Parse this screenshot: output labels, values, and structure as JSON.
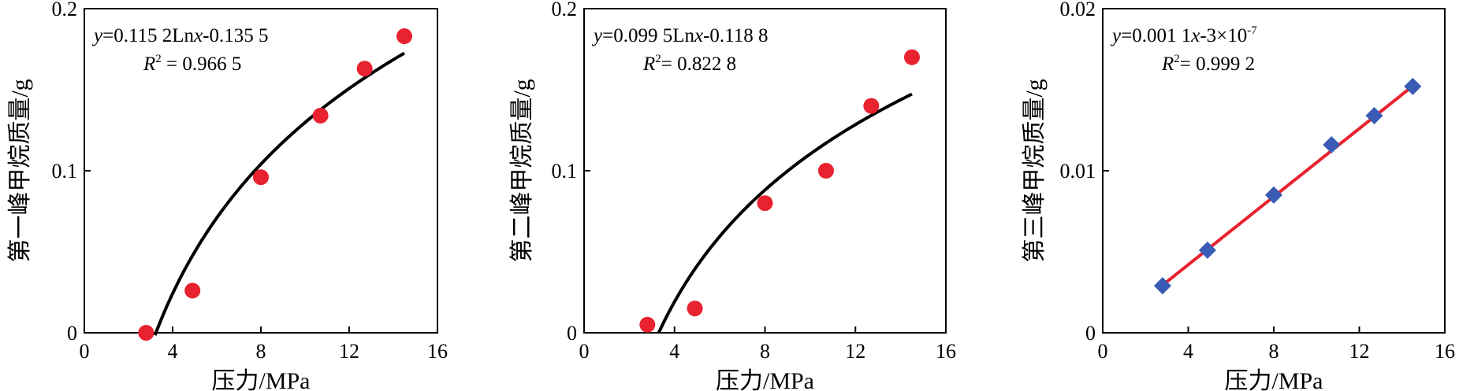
{
  "chart_data": [
    {
      "type": "scatter",
      "xlabel": "压力/MPa",
      "ylabel": "第一峰甲烷质量/g",
      "xlim": [
        0,
        16
      ],
      "ylim": [
        0,
        0.2
      ],
      "xticks": [
        "0",
        "4",
        "8",
        "12",
        "16"
      ],
      "yticks": [
        "0",
        "0.1",
        "0.2"
      ],
      "grid": false,
      "equation_parts": {
        "y": "y",
        "rest": "=0.115 2Ln",
        "x": "x",
        "tail": "-0.135 5"
      },
      "r2_parts": {
        "r": "R",
        "sup": "2",
        "value": " = 0.966 5"
      },
      "marker": "circle",
      "marker_color": "#e8222e",
      "fit_color": "#000000",
      "fit": {
        "kind": "log",
        "a": 0.1152,
        "b": -0.1355,
        "x_range": [
          3.2,
          14.5
        ]
      },
      "points": [
        {
          "x": 2.8,
          "y": 0.0
        },
        {
          "x": 4.9,
          "y": 0.026
        },
        {
          "x": 8.0,
          "y": 0.096
        },
        {
          "x": 10.7,
          "y": 0.134
        },
        {
          "x": 12.7,
          "y": 0.163
        },
        {
          "x": 14.5,
          "y": 0.183
        }
      ]
    },
    {
      "type": "scatter",
      "xlabel": "压力/MPa",
      "ylabel": "第二峰甲烷质量/g",
      "xlim": [
        0,
        16
      ],
      "ylim": [
        0,
        0.2
      ],
      "xticks": [
        "0",
        "4",
        "8",
        "12",
        "16"
      ],
      "yticks": [
        "0",
        "0.1",
        "0.2"
      ],
      "grid": false,
      "equation_parts": {
        "y": "y",
        "rest": "=0.099 5Ln",
        "x": "x",
        "tail": "-0.118 8"
      },
      "r2_parts": {
        "r": "R",
        "sup": "2",
        "value": "= 0.822 8"
      },
      "marker": "circle",
      "marker_color": "#e8222e",
      "fit_color": "#000000",
      "fit": {
        "kind": "log",
        "a": 0.0995,
        "b": -0.1188,
        "x_range": [
          3.3,
          14.5
        ]
      },
      "points": [
        {
          "x": 2.8,
          "y": 0.005
        },
        {
          "x": 4.9,
          "y": 0.015
        },
        {
          "x": 8.0,
          "y": 0.08
        },
        {
          "x": 10.7,
          "y": 0.1
        },
        {
          "x": 12.7,
          "y": 0.14
        },
        {
          "x": 14.5,
          "y": 0.17
        }
      ]
    },
    {
      "type": "scatter",
      "xlabel": "压力/MPa",
      "ylabel": "第三峰甲烷质量/g",
      "xlim": [
        0,
        16
      ],
      "ylim": [
        0,
        0.02
      ],
      "xticks": [
        "0",
        "4",
        "8",
        "12",
        "16"
      ],
      "yticks": [
        "0",
        "0.01",
        "0.02"
      ],
      "grid": false,
      "equation_parts": {
        "y": "y",
        "rest": "=0.001 1",
        "x": "x",
        "tail": "-3×10",
        "sup": "-7"
      },
      "r2_parts": {
        "r": "R",
        "sup": "2",
        "value": "= 0.999 2"
      },
      "marker": "diamond",
      "marker_color": "#3a5bb5",
      "fit_color": "#e8222e",
      "fit": {
        "kind": "linear",
        "a": 0.00105,
        "b": 0.0,
        "x_range": [
          2.8,
          14.5
        ]
      },
      "points": [
        {
          "x": 2.8,
          "y": 0.0029
        },
        {
          "x": 4.9,
          "y": 0.0051
        },
        {
          "x": 8.0,
          "y": 0.0085
        },
        {
          "x": 10.7,
          "y": 0.0116
        },
        {
          "x": 12.7,
          "y": 0.0134
        },
        {
          "x": 14.5,
          "y": 0.0152
        }
      ]
    }
  ]
}
